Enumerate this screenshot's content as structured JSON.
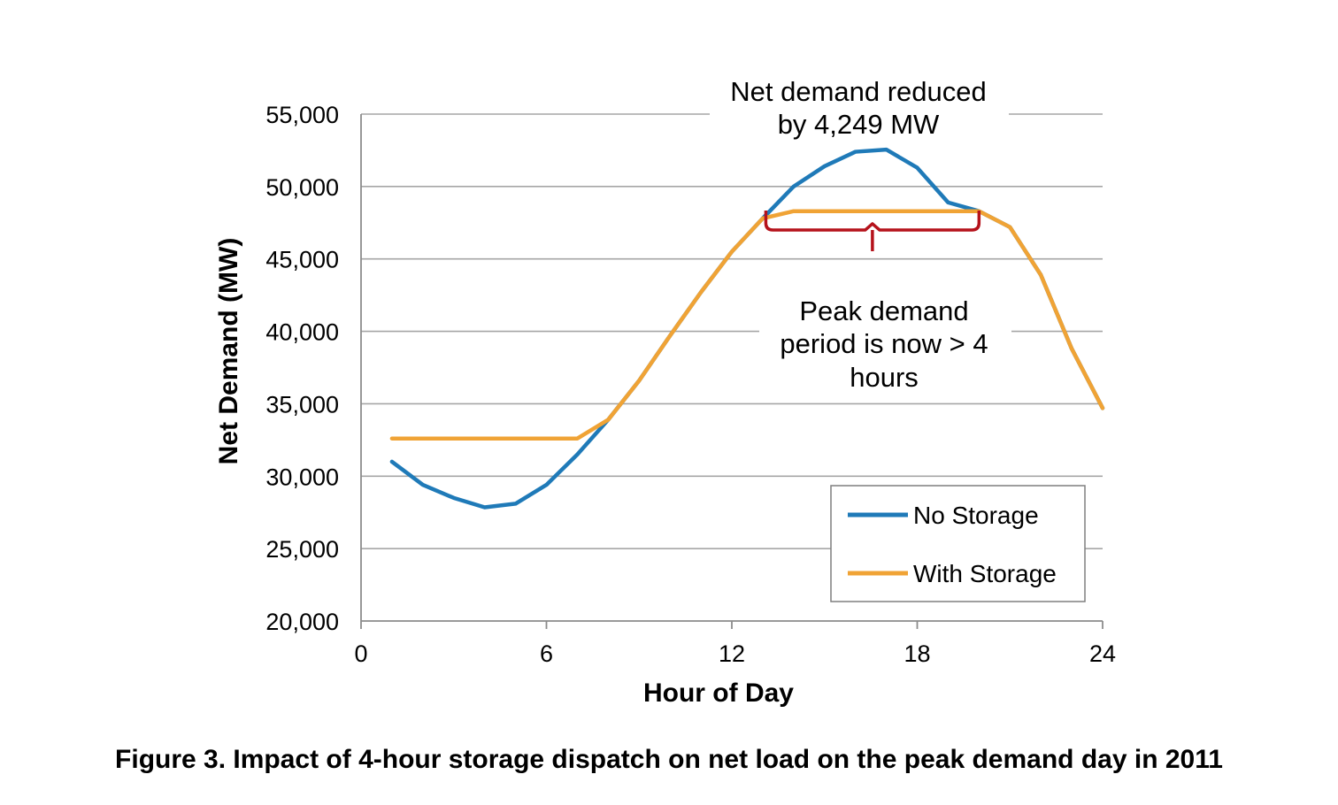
{
  "caption": "Figure 3. Impact of 4-hour storage dispatch on net load on the peak demand day in 2011",
  "chart_data": {
    "type": "line",
    "xlabel": "Hour of Day",
    "ylabel": "Net Demand (MW)",
    "xlim": [
      0,
      24
    ],
    "ylim": [
      20000,
      55000
    ],
    "x_ticks": [
      "0",
      "6",
      "12",
      "18",
      "24"
    ],
    "x_tick_values": [
      0,
      6,
      12,
      18,
      24
    ],
    "y_ticks": [
      "20,000",
      "25,000",
      "30,000",
      "35,000",
      "40,000",
      "45,000",
      "50,000",
      "55,000"
    ],
    "y_tick_values": [
      20000,
      25000,
      30000,
      35000,
      40000,
      45000,
      50000,
      55000
    ],
    "grid": "horizontal",
    "legend_position": "bottom-right",
    "x": [
      1,
      2,
      3,
      4,
      5,
      6,
      7,
      8,
      9,
      10,
      11,
      12,
      13,
      14,
      15,
      16,
      17,
      18,
      19,
      20,
      21,
      22,
      23,
      24
    ],
    "series": [
      {
        "name": "No Storage",
        "color": "#1f7ab8",
        "values": [
          31000,
          29400,
          28500,
          27850,
          28100,
          29400,
          31500,
          33900,
          36600,
          39700,
          42700,
          45500,
          47800,
          50000,
          51400,
          52400,
          52550,
          51300,
          48900,
          48300,
          47200,
          43900,
          38800,
          34700
        ]
      },
      {
        "name": "With Storage",
        "color": "#f0a335",
        "values": [
          32600,
          32600,
          32600,
          32600,
          32600,
          32600,
          32600,
          33900,
          36600,
          39700,
          42700,
          45500,
          47800,
          48300,
          48300,
          48300,
          48300,
          48300,
          48300,
          48300,
          47200,
          43900,
          38800,
          34700
        ]
      }
    ],
    "annotations": {
      "reduced": [
        "Net demand reduced",
        "by 4,249 MW"
      ],
      "peak_period": [
        "Peak demand",
        "period is now > 4",
        "hours"
      ]
    },
    "bracket": {
      "from_hour": 13.1,
      "to_hour": 20,
      "level": 47000,
      "color": "#b5121b"
    }
  }
}
